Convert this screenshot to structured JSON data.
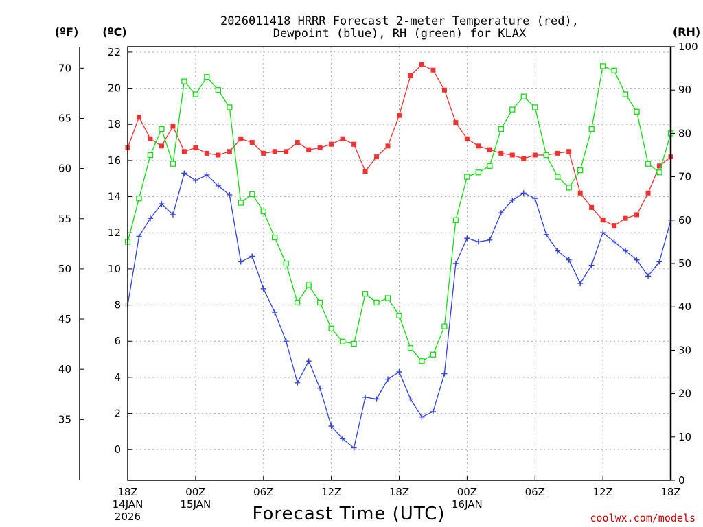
{
  "chart_data": {
    "type": "line",
    "title_line1": "2026011418 HRRR Forecast 2-meter Temperature (red),",
    "title_line2": "Dewpoint (blue), RH (green) for KLAX",
    "xlabel": "Forecast Time (UTC)",
    "credit": "coolwx.com/models",
    "unit_f": "(ºF)",
    "unit_c": "(ºC)",
    "unit_rh": "(RH)",
    "xlim": [
      0,
      48
    ],
    "ylim_c": [
      -1.7,
      22.3
    ],
    "ylim_rh": [
      0,
      100
    ],
    "yticks_c": [
      "0",
      "2",
      "4",
      "6",
      "8",
      "10",
      "12",
      "14",
      "16",
      "18",
      "20",
      "22"
    ],
    "yticks_f": [
      "35",
      "40",
      "45",
      "50",
      "55",
      "60",
      "65",
      "70"
    ],
    "yticks_rh": [
      "0",
      "10",
      "20",
      "30",
      "40",
      "50",
      "60",
      "70",
      "80",
      "90",
      "100"
    ],
    "xticks": [
      {
        "hour": 0,
        "lines": [
          "18Z",
          "14JAN",
          "2026"
        ]
      },
      {
        "hour": 6,
        "lines": [
          "00Z",
          "15JAN"
        ]
      },
      {
        "hour": 12,
        "lines": [
          "06Z"
        ]
      },
      {
        "hour": 18,
        "lines": [
          "12Z"
        ]
      },
      {
        "hour": 24,
        "lines": [
          "18Z"
        ]
      },
      {
        "hour": 30,
        "lines": [
          "00Z",
          "16JAN"
        ]
      },
      {
        "hour": 36,
        "lines": [
          "06Z"
        ]
      },
      {
        "hour": 42,
        "lines": [
          "12Z"
        ]
      },
      {
        "hour": 48,
        "lines": [
          "18Z"
        ]
      }
    ],
    "series": [
      {
        "name": "2-meter Temperature",
        "units": "C",
        "axis": "c",
        "marker": "filled-square",
        "color": "#ee3333",
        "values": [
          16.7,
          18.4,
          17.2,
          16.8,
          17.9,
          16.5,
          16.7,
          16.4,
          16.3,
          16.5,
          17.2,
          17.0,
          16.4,
          16.5,
          16.5,
          17.0,
          16.6,
          16.7,
          16.9,
          17.2,
          16.9,
          15.4,
          16.2,
          16.8,
          18.5,
          20.7,
          21.3,
          21.0,
          19.9,
          18.1,
          17.2,
          16.8,
          16.6,
          16.4,
          16.3,
          16.1,
          16.3,
          16.3,
          16.4,
          16.5,
          14.2,
          13.4,
          12.7,
          12.4,
          12.8,
          13.0,
          14.2,
          15.7,
          16.2
        ]
      },
      {
        "name": "Dewpoint",
        "units": "C",
        "axis": "c",
        "marker": "plus",
        "color": "#3344dd",
        "values": [
          8.0,
          11.8,
          12.8,
          13.6,
          13.0,
          15.3,
          14.9,
          15.2,
          14.6,
          14.1,
          10.4,
          10.7,
          8.9,
          7.6,
          6.0,
          3.7,
          4.9,
          3.4,
          1.3,
          0.6,
          0.1,
          2.9,
          2.8,
          3.9,
          4.3,
          2.8,
          1.8,
          2.1,
          4.2,
          10.3,
          11.7,
          11.5,
          11.6,
          13.1,
          13.8,
          14.2,
          13.9,
          11.9,
          11.0,
          10.5,
          9.2,
          10.2,
          12.0,
          11.5,
          11.0,
          10.5,
          9.6,
          10.4,
          12.7
        ]
      },
      {
        "name": "Relative Humidity",
        "units": "%",
        "axis": "rh",
        "marker": "open-square",
        "color": "#11dd11",
        "values": [
          55,
          65,
          75,
          81,
          73,
          92,
          89,
          93,
          90,
          86,
          64,
          66,
          62,
          56,
          50,
          41,
          45,
          41,
          35,
          32,
          31.5,
          43,
          41,
          42,
          38,
          30.5,
          27.5,
          29,
          35.5,
          60,
          70,
          71,
          72.5,
          81,
          85.5,
          88.5,
          86,
          75,
          70,
          67.5,
          71.5,
          81,
          95.5,
          94.5,
          89,
          85,
          73,
          71,
          80
        ]
      }
    ]
  }
}
